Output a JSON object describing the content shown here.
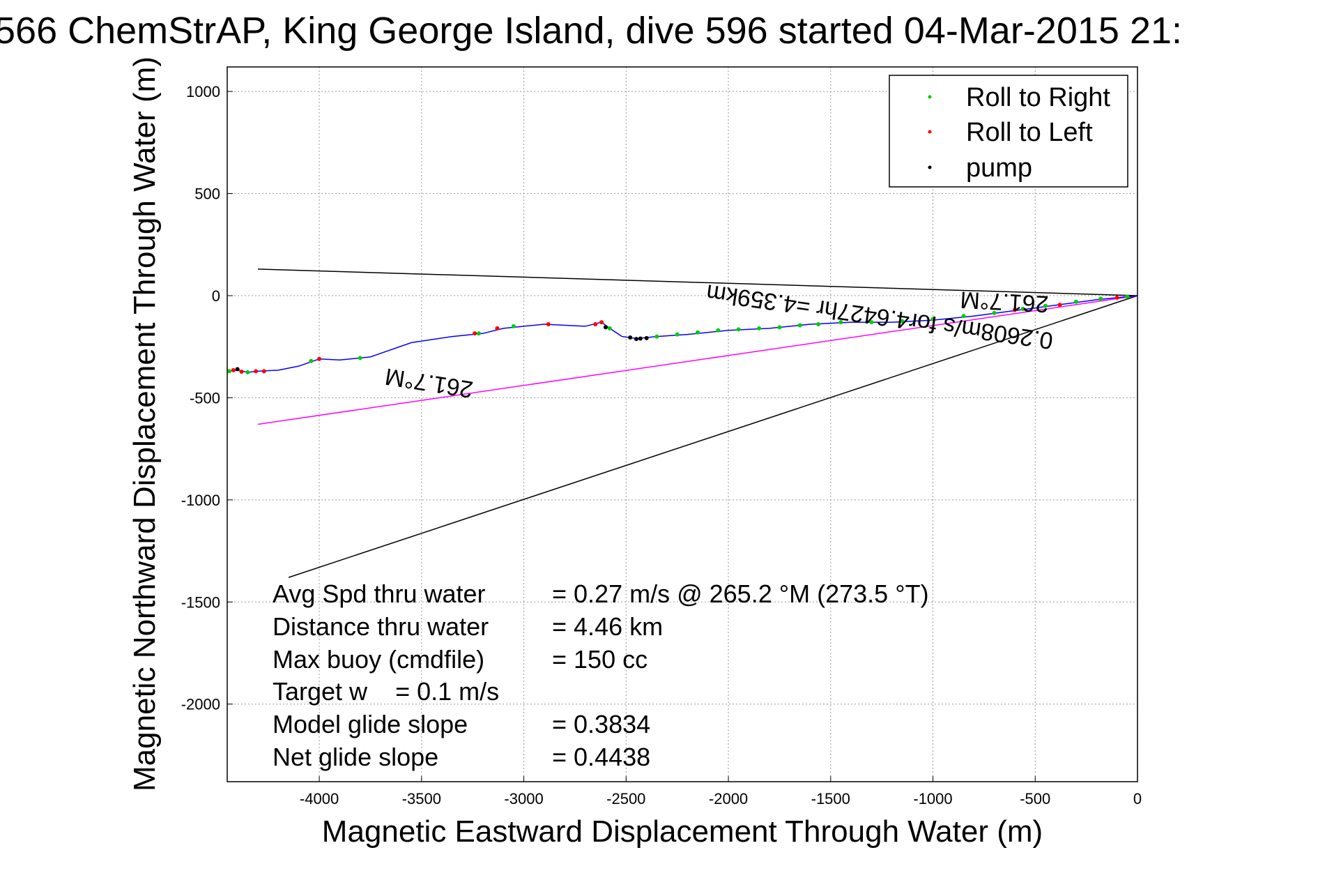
{
  "chart_data": {
    "type": "line",
    "title": "566 ChemStrAP, King George Island, dive 596 started 04-Mar-2015 21:",
    "xlabel": "Magnetic Eastward Displacement Through Water (m)",
    "ylabel": "Magnetic Northward Displacement Through Water (m)",
    "xlim": [
      -4450,
      0
    ],
    "ylim": [
      -2380,
      1120
    ],
    "xticks": [
      -4000,
      -3500,
      -3000,
      -2500,
      -2000,
      -1500,
      -1000,
      -500,
      0
    ],
    "yticks": [
      1000,
      500,
      0,
      -500,
      -1000,
      -1500,
      -2000
    ],
    "grid": true,
    "legend_position": "top-right",
    "legend": [
      {
        "label": "Roll to Right",
        "color": "#00cc00"
      },
      {
        "label": "Roll to Left",
        "color": "#ff0000"
      },
      {
        "label": "pump",
        "color": "#000000"
      }
    ],
    "track": {
      "color": "#0000ff",
      "x": [
        0,
        -100,
        -200,
        -350,
        -500,
        -650,
        -800,
        -1000,
        -1200,
        -1400,
        -1600,
        -1800,
        -2000,
        -2200,
        -2350,
        -2450,
        -2520,
        -2580,
        -2620,
        -2700,
        -2900,
        -3100,
        -3200,
        -3350,
        -3550,
        -3750,
        -3900,
        -4000,
        -4100,
        -4200,
        -4300,
        -4350,
        -4400,
        -4450
      ],
      "y": [
        0,
        -10,
        -20,
        -40,
        -60,
        -80,
        -100,
        -120,
        -130,
        -130,
        -140,
        -160,
        -170,
        -190,
        -200,
        -210,
        -200,
        -160,
        -130,
        -150,
        -140,
        -160,
        -185,
        -200,
        -230,
        -300,
        -315,
        -310,
        -345,
        -365,
        -370,
        -375,
        -365,
        -370
      ]
    },
    "roll_right_points": {
      "x": [
        -50,
        -180,
        -300,
        -450,
        -560,
        -700,
        -850,
        -1000,
        -1150,
        -1300,
        -1450,
        -1560,
        -1650,
        -1750,
        -1850,
        -1950,
        -2050,
        -2150,
        -2250,
        -2350,
        -2580,
        -3050,
        -3220,
        -3800,
        -4040,
        -4350,
        -4440
      ],
      "y": [
        -5,
        -15,
        -30,
        -50,
        -65,
        -85,
        -100,
        -115,
        -125,
        -130,
        -130,
        -140,
        -145,
        -155,
        -160,
        -165,
        -170,
        -180,
        -190,
        -200,
        -160,
        -150,
        -185,
        -305,
        -320,
        -375,
        -370
      ]
    },
    "roll_left_points": {
      "x": [
        -100,
        -380,
        -600,
        -2620,
        -2650,
        -2880,
        -3130,
        -3240,
        -4000,
        -4270,
        -4310,
        -4380,
        -4420
      ],
      "y": [
        -10,
        -45,
        -70,
        -130,
        -140,
        -140,
        -160,
        -185,
        -310,
        -370,
        -370,
        -372,
        -365
      ]
    },
    "pump_points": {
      "x": [
        -2430,
        -2450,
        -2480,
        -2400,
        -2600,
        -4400
      ],
      "y": [
        -210,
        -212,
        -205,
        -208,
        -155,
        -360
      ]
    },
    "heading_line_261_7": {
      "color": "#000000",
      "x": [
        0,
        -4300
      ],
      "y": [
        0,
        130
      ]
    },
    "current_vector": {
      "color": "#ff00ff",
      "x": [
        0,
        -4300
      ],
      "y": [
        0,
        -630
      ]
    },
    "net_track_line": {
      "color": "#000000",
      "x": [
        0,
        -4150
      ],
      "y": [
        0,
        -1380
      ]
    },
    "onplot_labels": {
      "heading_near": "261.7°M",
      "heading_far": "261.7°M",
      "current": "0.2608m/s for4.6427hr =4.359km"
    },
    "stats": {
      "labels": [
        "Avg Spd thru water",
        "Distance thru water",
        "Max buoy (cmdfile)",
        "Target w    = 0.1 m/s",
        "Model glide slope",
        "Net glide slope"
      ],
      "values": [
        "=  0.27 m/s @ 265.2 °M (273.5 °T)",
        "=  4.46 km",
        "= 150 cc",
        "",
        "= 0.3834",
        "= 0.4438"
      ]
    }
  }
}
